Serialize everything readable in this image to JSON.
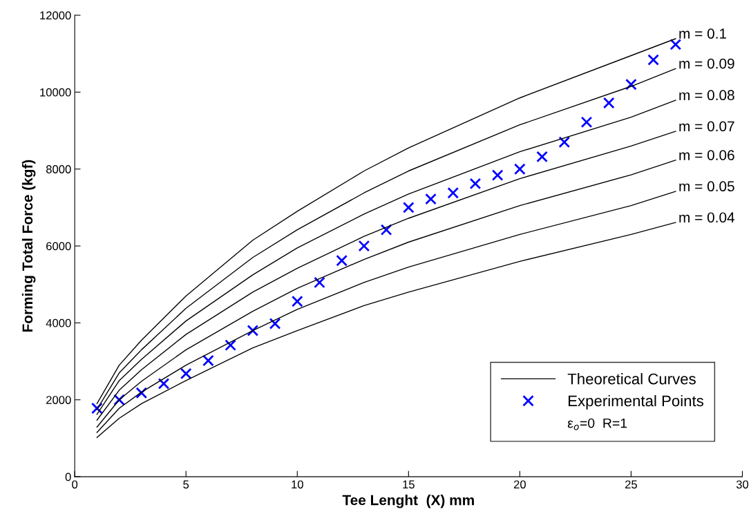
{
  "chart_data": {
    "type": "line",
    "xlabel": "Tee Lenght  (X) mm",
    "ylabel": "Forming Total Force (kgf)",
    "xlim": [
      0,
      30
    ],
    "xticks": [
      0,
      5,
      10,
      15,
      20,
      25,
      30
    ],
    "ylim": [
      0,
      12000
    ],
    "yticks": [
      0,
      2000,
      4000,
      6000,
      8000,
      10000,
      12000
    ],
    "grid": false,
    "legend": "bottom right",
    "annotations": [
      "Theoretical Curves",
      "ε$_{o}$=0  R=1"
    ],
    "series": [
      {
        "name": "m = 0.1",
        "color": "#000000",
        "x": [
          1,
          2,
          3,
          5,
          8,
          10,
          13,
          15,
          20,
          25,
          27
        ],
        "values": [
          1900,
          2900,
          3550,
          4700,
          6150,
          6900,
          7950,
          8550,
          9850,
          10950,
          11390
        ]
      },
      {
        "name": "m = 0.09",
        "color": "#000000",
        "x": [
          1,
          2,
          3,
          5,
          8,
          10,
          13,
          15,
          20,
          25,
          27
        ],
        "values": [
          1750,
          2700,
          3300,
          4380,
          5700,
          6420,
          7380,
          7950,
          9150,
          10150,
          10610
        ]
      },
      {
        "name": "m = 0.08",
        "color": "#000000",
        "x": [
          1,
          2,
          3,
          5,
          8,
          10,
          13,
          15,
          20,
          25,
          27
        ],
        "values": [
          1620,
          2500,
          3050,
          4050,
          5250,
          5950,
          6830,
          7350,
          8450,
          9350,
          9790
        ]
      },
      {
        "name": "m = 0.07",
        "color": "#000000",
        "x": [
          1,
          2,
          3,
          5,
          8,
          10,
          13,
          15,
          20,
          25,
          27
        ],
        "values": [
          1470,
          2250,
          2780,
          3700,
          4800,
          5420,
          6250,
          6720,
          7750,
          8600,
          8980
        ]
      },
      {
        "name": "m = 0.06",
        "color": "#000000",
        "x": [
          1,
          2,
          3,
          5,
          8,
          10,
          13,
          15,
          20,
          25,
          27
        ],
        "values": [
          1290,
          2000,
          2480,
          3300,
          4300,
          4900,
          5650,
          6100,
          7050,
          7850,
          8230
        ]
      },
      {
        "name": "m = 0.05",
        "color": "#000000",
        "x": [
          1,
          2,
          3,
          5,
          8,
          10,
          13,
          15,
          20,
          25,
          27
        ],
        "values": [
          1150,
          1780,
          2200,
          2900,
          3800,
          4350,
          5050,
          5450,
          6300,
          7050,
          7420
        ]
      },
      {
        "name": "m = 0.04",
        "color": "#000000",
        "x": [
          1,
          2,
          3,
          5,
          8,
          10,
          13,
          15,
          20,
          25,
          27
        ],
        "values": [
          1020,
          1520,
          1900,
          2500,
          3350,
          3800,
          4450,
          4800,
          5600,
          6300,
          6610
        ]
      },
      {
        "name": "Experimental Points",
        "type": "scatter",
        "marker": "cross",
        "color": "#0000ff",
        "x": [
          1,
          2,
          3,
          4,
          5,
          6,
          7,
          8,
          9,
          10,
          11,
          12,
          13,
          14,
          15,
          16,
          17,
          18,
          19,
          20,
          21,
          22,
          23,
          24,
          25,
          26,
          27
        ],
        "values": [
          1780,
          2000,
          2180,
          2420,
          2680,
          3020,
          3420,
          3800,
          3980,
          4560,
          5050,
          5620,
          6000,
          6420,
          7000,
          7220,
          7380,
          7620,
          7840,
          8000,
          8320,
          8700,
          9220,
          9720,
          10200,
          10840,
          11240
        ]
      }
    ]
  }
}
